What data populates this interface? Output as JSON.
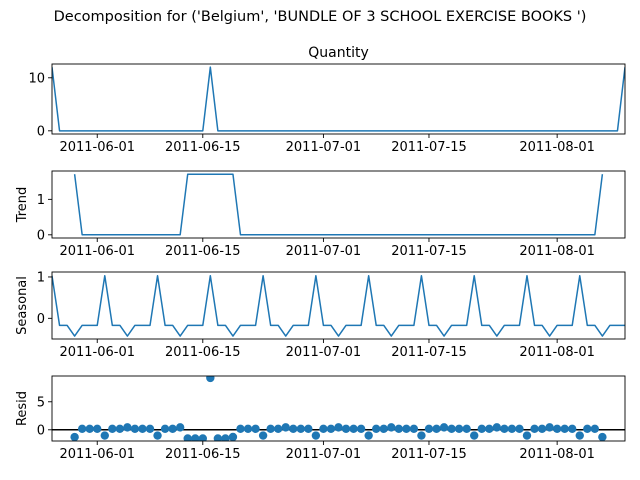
{
  "figure": {
    "suptitle": "Decomposition for ('Belgium', 'BUNDLE OF 3 SCHOOL EXERCISE BOOKS  ')"
  },
  "chart_data": [
    {
      "type": "line",
      "title": "Quantity",
      "ylabel": "",
      "color": "#1f77b4",
      "x_start": "2011-05-26",
      "x_end": "2011-08-10",
      "xticks": [
        "2011-06-01",
        "2011-06-15",
        "2011-07-01",
        "2011-07-15",
        "2011-08-01"
      ],
      "yticks": [
        0,
        10
      ],
      "ylim": [
        -0.6,
        12.6
      ],
      "points": [
        [
          "2011-05-26",
          12
        ],
        [
          "2011-05-27",
          0
        ],
        [
          "2011-06-15",
          0
        ],
        [
          "2011-06-16",
          12
        ],
        [
          "2011-06-17",
          0
        ],
        [
          "2011-08-09",
          0
        ],
        [
          "2011-08-10",
          12
        ]
      ]
    },
    {
      "type": "line",
      "title": "",
      "ylabel": "Trend",
      "color": "#1f77b4",
      "x_start": "2011-05-26",
      "x_end": "2011-08-10",
      "xticks": [
        "2011-06-01",
        "2011-06-15",
        "2011-07-01",
        "2011-07-15",
        "2011-08-01"
      ],
      "yticks": [
        0,
        1
      ],
      "ylim": [
        -0.09,
        1.8
      ],
      "points": [
        [
          "2011-05-29",
          1.71
        ],
        [
          "2011-05-30",
          0
        ],
        [
          "2011-06-12",
          0
        ],
        [
          "2011-06-13",
          1.71
        ],
        [
          "2011-06-19",
          1.71
        ],
        [
          "2011-06-20",
          0
        ],
        [
          "2011-08-06",
          0
        ],
        [
          "2011-08-07",
          1.71
        ]
      ]
    },
    {
      "type": "line",
      "title": "",
      "ylabel": "Seasonal",
      "color": "#1f77b4",
      "x_start": "2011-05-26",
      "x_end": "2011-08-10",
      "xticks": [
        "2011-06-01",
        "2011-06-15",
        "2011-07-01",
        "2011-07-15",
        "2011-08-01"
      ],
      "yticks": [
        0,
        1
      ],
      "ylim": [
        -0.5,
        1.12
      ],
      "points": [
        [
          "2011-05-26",
          1.03
        ],
        [
          "2011-05-27",
          -0.17
        ],
        [
          "2011-05-28",
          -0.17
        ],
        [
          "2011-05-29",
          -0.43
        ],
        [
          "2011-05-30",
          -0.17
        ],
        [
          "2011-05-31",
          -0.17
        ],
        [
          "2011-06-01",
          -0.17
        ],
        [
          "2011-06-02",
          1.03
        ],
        [
          "2011-06-03",
          -0.17
        ],
        [
          "2011-06-04",
          -0.17
        ],
        [
          "2011-06-05",
          -0.43
        ],
        [
          "2011-06-06",
          -0.17
        ],
        [
          "2011-06-07",
          -0.17
        ],
        [
          "2011-06-08",
          -0.17
        ],
        [
          "2011-06-09",
          1.03
        ],
        [
          "2011-06-10",
          -0.17
        ],
        [
          "2011-06-11",
          -0.17
        ],
        [
          "2011-06-12",
          -0.43
        ],
        [
          "2011-06-13",
          -0.17
        ],
        [
          "2011-06-14",
          -0.17
        ],
        [
          "2011-06-15",
          -0.17
        ],
        [
          "2011-06-16",
          1.03
        ],
        [
          "2011-06-17",
          -0.17
        ],
        [
          "2011-06-18",
          -0.17
        ],
        [
          "2011-06-19",
          -0.43
        ],
        [
          "2011-06-20",
          -0.17
        ],
        [
          "2011-06-21",
          -0.17
        ],
        [
          "2011-06-22",
          -0.17
        ],
        [
          "2011-06-23",
          1.03
        ],
        [
          "2011-06-24",
          -0.17
        ],
        [
          "2011-06-25",
          -0.17
        ],
        [
          "2011-06-26",
          -0.43
        ],
        [
          "2011-06-27",
          -0.17
        ],
        [
          "2011-06-28",
          -0.17
        ],
        [
          "2011-06-29",
          -0.17
        ],
        [
          "2011-06-30",
          1.03
        ],
        [
          "2011-07-01",
          -0.17
        ],
        [
          "2011-07-02",
          -0.17
        ],
        [
          "2011-07-03",
          -0.43
        ],
        [
          "2011-07-04",
          -0.17
        ],
        [
          "2011-07-05",
          -0.17
        ],
        [
          "2011-07-06",
          -0.17
        ],
        [
          "2011-07-07",
          1.03
        ],
        [
          "2011-07-08",
          -0.17
        ],
        [
          "2011-07-09",
          -0.17
        ],
        [
          "2011-07-10",
          -0.43
        ],
        [
          "2011-07-11",
          -0.17
        ],
        [
          "2011-07-12",
          -0.17
        ],
        [
          "2011-07-13",
          -0.17
        ],
        [
          "2011-07-14",
          1.03
        ],
        [
          "2011-07-15",
          -0.17
        ],
        [
          "2011-07-16",
          -0.17
        ],
        [
          "2011-07-17",
          -0.43
        ],
        [
          "2011-07-18",
          -0.17
        ],
        [
          "2011-07-19",
          -0.17
        ],
        [
          "2011-07-20",
          -0.17
        ],
        [
          "2011-07-21",
          1.03
        ],
        [
          "2011-07-22",
          -0.17
        ],
        [
          "2011-07-23",
          -0.17
        ],
        [
          "2011-07-24",
          -0.43
        ],
        [
          "2011-07-25",
          -0.17
        ],
        [
          "2011-07-26",
          -0.17
        ],
        [
          "2011-07-27",
          -0.17
        ],
        [
          "2011-07-28",
          1.03
        ],
        [
          "2011-07-29",
          -0.17
        ],
        [
          "2011-07-30",
          -0.17
        ],
        [
          "2011-07-31",
          -0.43
        ],
        [
          "2011-08-01",
          -0.17
        ],
        [
          "2011-08-02",
          -0.17
        ],
        [
          "2011-08-03",
          -0.17
        ],
        [
          "2011-08-04",
          1.03
        ],
        [
          "2011-08-05",
          -0.17
        ],
        [
          "2011-08-06",
          -0.17
        ],
        [
          "2011-08-07",
          -0.43
        ],
        [
          "2011-08-08",
          -0.17
        ],
        [
          "2011-08-09",
          -0.17
        ],
        [
          "2011-08-10",
          -0.17
        ]
      ]
    },
    {
      "type": "scatter",
      "title": "",
      "ylabel": "Resid",
      "color": "#1f77b4",
      "x_start": "2011-05-26",
      "x_end": "2011-08-10",
      "xticks": [
        "2011-06-01",
        "2011-06-15",
        "2011-07-01",
        "2011-07-15",
        "2011-08-01"
      ],
      "yticks": [
        0,
        5
      ],
      "ylim": [
        -2.0,
        9.6
      ],
      "zero_line": true,
      "points": [
        [
          "2011-05-29",
          -1.3
        ],
        [
          "2011-05-30",
          0.17
        ],
        [
          "2011-05-31",
          0.17
        ],
        [
          "2011-06-01",
          0.17
        ],
        [
          "2011-06-02",
          -1.03
        ],
        [
          "2011-06-03",
          0.17
        ],
        [
          "2011-06-04",
          0.17
        ],
        [
          "2011-06-05",
          0.43
        ],
        [
          "2011-06-06",
          0.17
        ],
        [
          "2011-06-07",
          0.17
        ],
        [
          "2011-06-08",
          0.17
        ],
        [
          "2011-06-09",
          -1.03
        ],
        [
          "2011-06-10",
          0.17
        ],
        [
          "2011-06-11",
          0.17
        ],
        [
          "2011-06-12",
          0.43
        ],
        [
          "2011-06-13",
          -1.54
        ],
        [
          "2011-06-14",
          -1.54
        ],
        [
          "2011-06-15",
          -1.54
        ],
        [
          "2011-06-16",
          9.26
        ],
        [
          "2011-06-17",
          -1.54
        ],
        [
          "2011-06-18",
          -1.54
        ],
        [
          "2011-06-19",
          -1.28
        ],
        [
          "2011-06-20",
          0.17
        ],
        [
          "2011-06-21",
          0.17
        ],
        [
          "2011-06-22",
          0.17
        ],
        [
          "2011-06-23",
          -1.03
        ],
        [
          "2011-06-24",
          0.17
        ],
        [
          "2011-06-25",
          0.17
        ],
        [
          "2011-06-26",
          0.43
        ],
        [
          "2011-06-27",
          0.17
        ],
        [
          "2011-06-28",
          0.17
        ],
        [
          "2011-06-29",
          0.17
        ],
        [
          "2011-06-30",
          -1.03
        ],
        [
          "2011-07-01",
          0.17
        ],
        [
          "2011-07-02",
          0.17
        ],
        [
          "2011-07-03",
          0.43
        ],
        [
          "2011-07-04",
          0.17
        ],
        [
          "2011-07-05",
          0.17
        ],
        [
          "2011-07-06",
          0.17
        ],
        [
          "2011-07-07",
          -1.03
        ],
        [
          "2011-07-08",
          0.17
        ],
        [
          "2011-07-09",
          0.17
        ],
        [
          "2011-07-10",
          0.43
        ],
        [
          "2011-07-11",
          0.17
        ],
        [
          "2011-07-12",
          0.17
        ],
        [
          "2011-07-13",
          0.17
        ],
        [
          "2011-07-14",
          -1.03
        ],
        [
          "2011-07-15",
          0.17
        ],
        [
          "2011-07-16",
          0.17
        ],
        [
          "2011-07-17",
          0.43
        ],
        [
          "2011-07-18",
          0.17
        ],
        [
          "2011-07-19",
          0.17
        ],
        [
          "2011-07-20",
          0.17
        ],
        [
          "2011-07-21",
          -1.03
        ],
        [
          "2011-07-22",
          0.17
        ],
        [
          "2011-07-23",
          0.17
        ],
        [
          "2011-07-24",
          0.43
        ],
        [
          "2011-07-25",
          0.17
        ],
        [
          "2011-07-26",
          0.17
        ],
        [
          "2011-07-27",
          0.17
        ],
        [
          "2011-07-28",
          -1.03
        ],
        [
          "2011-07-29",
          0.17
        ],
        [
          "2011-07-30",
          0.17
        ],
        [
          "2011-07-31",
          0.43
        ],
        [
          "2011-08-01",
          0.17
        ],
        [
          "2011-08-02",
          0.17
        ],
        [
          "2011-08-03",
          0.17
        ],
        [
          "2011-08-04",
          -1.03
        ],
        [
          "2011-08-05",
          0.17
        ],
        [
          "2011-08-06",
          0.17
        ],
        [
          "2011-08-07",
          -1.3
        ]
      ]
    }
  ]
}
